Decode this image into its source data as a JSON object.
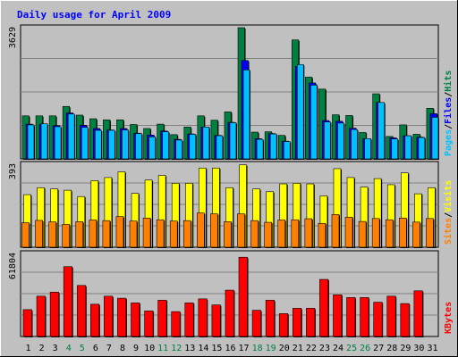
{
  "title": "Daily usage for April 2009",
  "colors": {
    "background": "#c0c0c0",
    "plot_bg": "#c0c0c0",
    "title": "#0000ff",
    "hits": "#008040",
    "files": "#0000ff",
    "pages": "#00c0ff",
    "visits": "#ffff00",
    "sites": "#ff8000",
    "kbytes": "#ff0000",
    "weekend_label": "#008040",
    "weekday_label": "#000000"
  },
  "chart_data": [
    {
      "type": "bar",
      "panel": "hits-files-pages",
      "ymax_label": "3629",
      "ylim": [
        0,
        3629
      ],
      "legend_labels": [
        "Pages",
        "/",
        "Files",
        "/",
        "Hits"
      ],
      "legend_colors": [
        "#00c0ff",
        "#000000",
        "#0000ff",
        "#000000",
        "#008040"
      ],
      "categories": [
        "1",
        "2",
        "3",
        "4",
        "5",
        "6",
        "7",
        "8",
        "9",
        "10",
        "11",
        "12",
        "13",
        "14",
        "15",
        "16",
        "17",
        "18",
        "19",
        "20",
        "21",
        "22",
        "23",
        "24",
        "25",
        "26",
        "27",
        "28",
        "29",
        "30",
        "31"
      ],
      "series": [
        {
          "name": "Hits",
          "values": [
            1190,
            1190,
            1190,
            1450,
            1210,
            1110,
            1080,
            1080,
            950,
            840,
            960,
            670,
            880,
            1190,
            1070,
            1300,
            3629,
            740,
            750,
            650,
            3290,
            2260,
            1930,
            1220,
            1200,
            730,
            1800,
            620,
            940,
            680,
            1400
          ]
        },
        {
          "name": "Files",
          "values": [
            960,
            960,
            920,
            1270,
            930,
            840,
            800,
            840,
            710,
            660,
            770,
            540,
            690,
            880,
            650,
            1010,
            2720,
            560,
            700,
            490,
            2560,
            2100,
            1060,
            1040,
            850,
            560,
            1560,
            580,
            640,
            600,
            1250
          ]
        },
        {
          "name": "Pages",
          "values": [
            940,
            970,
            890,
            1240,
            870,
            790,
            790,
            800,
            700,
            610,
            750,
            520,
            680,
            880,
            640,
            1000,
            2460,
            540,
            690,
            480,
            2610,
            2040,
            1020,
            990,
            810,
            560,
            1560,
            550,
            640,
            590,
            1150
          ]
        }
      ]
    },
    {
      "type": "bar",
      "panel": "visits-sites",
      "ymax_label": "393",
      "ylim": [
        0,
        393
      ],
      "legend_labels": [
        "Sites",
        "/",
        "Visits"
      ],
      "legend_colors": [
        "#ff8000",
        "#000000",
        "#ffff00"
      ],
      "categories": [
        "1",
        "2",
        "3",
        "4",
        "5",
        "6",
        "7",
        "8",
        "9",
        "10",
        "11",
        "12",
        "13",
        "14",
        "15",
        "16",
        "17",
        "18",
        "19",
        "20",
        "21",
        "22",
        "23",
        "24",
        "25",
        "26",
        "27",
        "28",
        "29",
        "30",
        "31"
      ],
      "series": [
        {
          "name": "Visits",
          "values": [
            249,
            282,
            276,
            270,
            240,
            315,
            330,
            357,
            255,
            318,
            340,
            303,
            303,
            375,
            375,
            282,
            390,
            276,
            263,
            300,
            303,
            300,
            243,
            372,
            330,
            285,
            325,
            296,
            352,
            253,
            282
          ]
        },
        {
          "name": "Sites",
          "values": [
            116,
            127,
            120,
            108,
            121,
            129,
            126,
            145,
            124,
            138,
            130,
            124,
            126,
            162,
            158,
            121,
            158,
            126,
            118,
            129,
            130,
            135,
            113,
            155,
            142,
            122,
            136,
            130,
            138,
            119,
            136
          ]
        }
      ]
    },
    {
      "type": "bar",
      "panel": "kbytes",
      "ymax_label": "61804",
      "ylim": [
        0,
        61804
      ],
      "legend_labels": [
        "KBytes"
      ],
      "legend_colors": [
        "#ff0000"
      ],
      "categories": [
        "1",
        "2",
        "3",
        "4",
        "5",
        "6",
        "7",
        "8",
        "9",
        "10",
        "11",
        "12",
        "13",
        "14",
        "15",
        "16",
        "17",
        "18",
        "19",
        "20",
        "21",
        "22",
        "23",
        "24",
        "25",
        "26",
        "27",
        "28",
        "29",
        "30",
        "31"
      ],
      "series": [
        {
          "name": "KBytes",
          "values": [
            20000,
            30000,
            33000,
            52000,
            38000,
            24000,
            30000,
            28500,
            25000,
            19000,
            27000,
            18500,
            25000,
            28000,
            23500,
            34500,
            59000,
            19500,
            27000,
            17000,
            21000,
            21000,
            42500,
            31000,
            29000,
            29000,
            25500,
            30000,
            24500,
            34000,
            0
          ]
        }
      ]
    }
  ],
  "x_labels": [
    "1",
    "2",
    "3",
    "4",
    "5",
    "6",
    "7",
    "8",
    "9",
    "10",
    "11",
    "12",
    "13",
    "14",
    "15",
    "16",
    "17",
    "18",
    "19",
    "20",
    "21",
    "22",
    "23",
    "24",
    "25",
    "26",
    "27",
    "28",
    "29",
    "30",
    "31"
  ],
  "weekend_days": [
    "4",
    "5",
    "11",
    "12",
    "18",
    "19",
    "25",
    "26"
  ]
}
